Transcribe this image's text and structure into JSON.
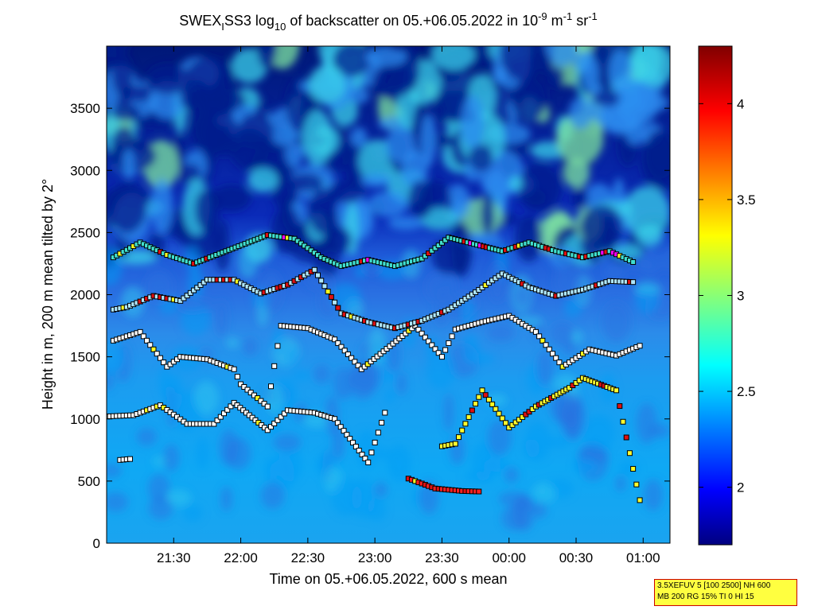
{
  "chart_data": {
    "type": "heatmap",
    "title": {
      "instrument_base": "SWEX",
      "instrument_sub": "I",
      "instrument_rest": "SS3 log",
      "log_sub": "10",
      "middle": " of backscatter on 05.+06.05.2022 in 10",
      "unit_exp1": "-9",
      "unit_m": " m",
      "unit_exp2": "-1",
      "unit_sr": " sr",
      "unit_exp3": "-1"
    },
    "xlabel": "Time on 05.+06.05.2022, 600 s mean",
    "ylabel": "Height in m, 200 m mean tilted by 2°",
    "x_range_hours": [
      21.0,
      25.2
    ],
    "y_range": [
      0,
      4000
    ],
    "x_ticks": [
      {
        "hour": 21.5,
        "label": "21:30"
      },
      {
        "hour": 22.0,
        "label": "22:00"
      },
      {
        "hour": 22.5,
        "label": "22:30"
      },
      {
        "hour": 23.0,
        "label": "23:00"
      },
      {
        "hour": 23.5,
        "label": "23:30"
      },
      {
        "hour": 24.0,
        "label": "00:00"
      },
      {
        "hour": 24.5,
        "label": "00:30"
      },
      {
        "hour": 25.0,
        "label": "01:00"
      }
    ],
    "y_ticks": [
      {
        "value": 0,
        "label": "0"
      },
      {
        "value": 500,
        "label": "500"
      },
      {
        "value": 1000,
        "label": "1000"
      },
      {
        "value": 1500,
        "label": "1500"
      },
      {
        "value": 2000,
        "label": "2000"
      },
      {
        "value": 2500,
        "label": "2500"
      },
      {
        "value": 3000,
        "label": "3000"
      },
      {
        "value": 3500,
        "label": "3500"
      }
    ],
    "colorbar": {
      "range": [
        1.7,
        4.3
      ],
      "colormap": "jet",
      "ticks": [
        {
          "value": 2,
          "label": "2"
        },
        {
          "value": 2.5,
          "label": "2.5"
        },
        {
          "value": 3,
          "label": "3"
        },
        {
          "value": 3.5,
          "label": "3.5"
        },
        {
          "value": 4,
          "label": "4"
        }
      ]
    },
    "layer_traces": [
      {
        "name": "",
        "points": [
          [
            21.0,
            1020
          ],
          [
            21.2,
            1030
          ],
          [
            21.4,
            1110
          ],
          [
            21.6,
            960
          ],
          [
            21.8,
            960
          ],
          [
            21.95,
            1130
          ],
          [
            22.2,
            910
          ],
          [
            22.35,
            1070
          ],
          [
            22.55,
            1050
          ],
          [
            22.7,
            1000
          ],
          [
            22.95,
            650
          ],
          [
            23.1,
            1130
          ]
        ]
      },
      {
        "name": "",
        "points": [
          [
            21.05,
            1630
          ],
          [
            21.25,
            1700
          ],
          [
            21.45,
            1420
          ],
          [
            21.55,
            1500
          ],
          [
            21.75,
            1480
          ],
          [
            21.95,
            1400
          ],
          [
            22.0,
            1280
          ],
          [
            22.2,
            1100
          ],
          [
            22.3,
            1750
          ],
          [
            22.5,
            1730
          ],
          [
            22.7,
            1640
          ],
          [
            22.9,
            1400
          ],
          [
            23.3,
            1750
          ],
          [
            23.5,
            1500
          ],
          [
            23.6,
            1720
          ],
          [
            23.8,
            1780
          ],
          [
            24.0,
            1830
          ],
          [
            24.2,
            1700
          ],
          [
            24.4,
            1420
          ],
          [
            24.6,
            1560
          ],
          [
            24.8,
            1510
          ],
          [
            25.0,
            1600
          ]
        ]
      },
      {
        "name": "",
        "points": [
          [
            21.05,
            1880
          ],
          [
            21.15,
            1900
          ],
          [
            21.35,
            1990
          ],
          [
            21.55,
            1950
          ],
          [
            21.75,
            2120
          ],
          [
            21.95,
            2120
          ],
          [
            22.15,
            2010
          ],
          [
            22.35,
            2080
          ],
          [
            22.55,
            2200
          ],
          [
            22.75,
            1850
          ],
          [
            22.95,
            1780
          ],
          [
            23.15,
            1730
          ],
          [
            23.35,
            1790
          ],
          [
            23.55,
            1880
          ],
          [
            23.75,
            2020
          ],
          [
            23.95,
            2170
          ],
          [
            24.15,
            2060
          ],
          [
            24.35,
            1990
          ],
          [
            24.55,
            2040
          ],
          [
            24.75,
            2110
          ],
          [
            24.95,
            2100
          ]
        ]
      },
      {
        "name": "",
        "points": [
          [
            21.05,
            2300
          ],
          [
            21.25,
            2420
          ],
          [
            21.45,
            2320
          ],
          [
            21.65,
            2250
          ],
          [
            22.2,
            2480
          ],
          [
            22.4,
            2450
          ],
          [
            22.6,
            2300
          ],
          [
            22.75,
            2230
          ],
          [
            22.95,
            2280
          ],
          [
            23.15,
            2230
          ],
          [
            23.35,
            2290
          ],
          [
            23.55,
            2460
          ],
          [
            23.95,
            2350
          ],
          [
            24.15,
            2420
          ],
          [
            24.35,
            2350
          ],
          [
            24.55,
            2300
          ],
          [
            24.75,
            2350
          ],
          [
            24.95,
            2250
          ]
        ]
      },
      {
        "name": "",
        "points": [
          [
            23.25,
            520
          ],
          [
            23.45,
            440
          ],
          [
            23.65,
            420
          ],
          [
            23.8,
            415
          ]
        ]
      },
      {
        "name": "",
        "points": [
          [
            23.5,
            780
          ],
          [
            23.6,
            800
          ],
          [
            23.8,
            1230
          ],
          [
            24.0,
            930
          ],
          [
            24.2,
            1100
          ],
          [
            24.45,
            1250
          ],
          [
            24.55,
            1330
          ],
          [
            24.8,
            1230
          ],
          [
            25.0,
            220
          ]
        ]
      },
      {
        "name": "",
        "points": [
          [
            21.1,
            670
          ],
          [
            21.2,
            680
          ]
        ]
      }
    ]
  },
  "params_box": {
    "line1": "3.5XEFUV 5 [100 2500] NH 600",
    "line2": "MB 200 RG 15% TI 0 HI 15"
  }
}
